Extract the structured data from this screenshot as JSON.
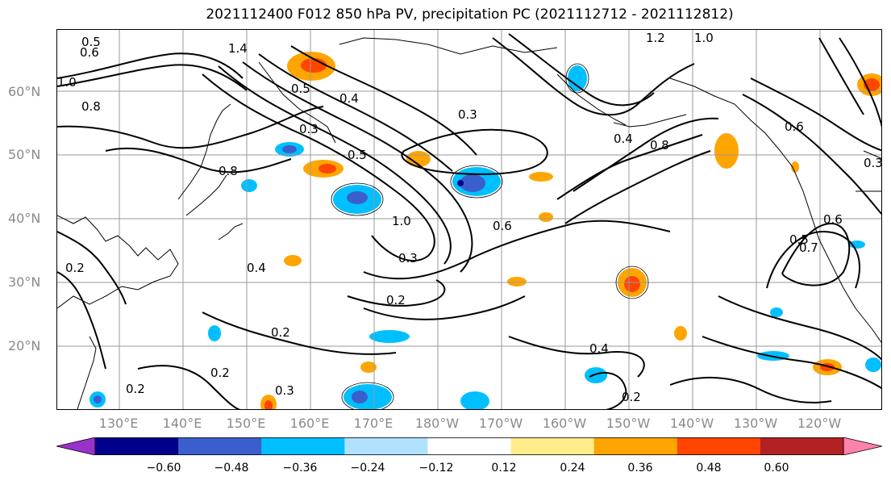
{
  "title": "2021112400 F012 850 hPa PV, precipitation PC (2021112712 - 2021112812)",
  "map": {
    "lat_labels": [
      "60°N",
      "50°N",
      "40°N",
      "30°N",
      "20°N"
    ],
    "lon_labels": [
      "130°E",
      "140°E",
      "150°E",
      "160°E",
      "170°E",
      "180°W",
      "170°W",
      "160°W",
      "150°W",
      "140°W",
      "130°W",
      "120°W"
    ],
    "contour_labels": [
      "0.5",
      "0.6",
      "0.8",
      "1.0",
      "1.4",
      "1.2",
      "1.0",
      "0.5",
      "0.4",
      "0.3",
      "0.8",
      "0.5",
      "0.3",
      "0.4",
      "0.8",
      "0.6",
      "0.5",
      "0.6",
      "0.7",
      "0.4",
      "0.2",
      "0.3",
      "0.2",
      "0.2",
      "0.2",
      "0.3",
      "0.4",
      "0.6",
      "0.2",
      "0.2",
      "1.0",
      "0.3"
    ],
    "positive_color": "#ffa500",
    "negative_color": "#00bfff"
  },
  "colorbar": {
    "colors": [
      "#9932cc",
      "#00008b",
      "#3a5fcd",
      "#00bfff",
      "#b0e2ff",
      "#ffffff",
      "#ffec8b",
      "#ffa500",
      "#ff4500",
      "#b22222",
      "#ff82ab"
    ],
    "ticks": [
      "−0.60",
      "−0.48",
      "−0.36",
      "−0.24",
      "−0.12",
      "0.12",
      "0.24",
      "0.36",
      "0.48",
      "0.60"
    ]
  }
}
